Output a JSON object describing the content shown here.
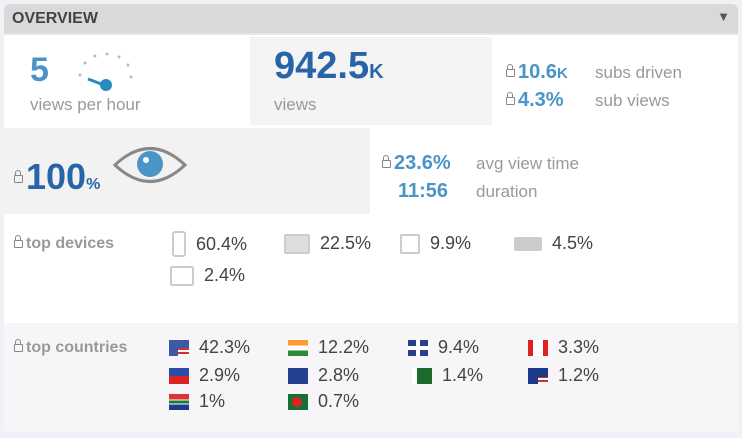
{
  "header": {
    "title": "OVERVIEW",
    "collapse_icon": "triangle-down-icon"
  },
  "views_per_hour": {
    "value": "5",
    "label": "views per hour",
    "icon": "speedometer-icon"
  },
  "views": {
    "value": "942.5",
    "unit": "K",
    "label": "views"
  },
  "subs": {
    "driven_value": "10.6",
    "driven_unit": "K",
    "driven_label": "subs driven",
    "sub_views_value": "4.3%",
    "sub_views_label": "sub views"
  },
  "viewed": {
    "value": "100",
    "unit": "%",
    "icon": "eye-icon"
  },
  "view_time": {
    "avg_value": "23.6%",
    "avg_label": "avg view time",
    "duration_value": "11:56",
    "duration_label": "duration"
  },
  "devices": {
    "label": "top devices",
    "items": [
      {
        "icon": "mobile-icon",
        "value": "60.4%"
      },
      {
        "icon": "desktop-icon",
        "value": "22.5%"
      },
      {
        "icon": "tablet-icon",
        "value": "9.9%"
      },
      {
        "icon": "game-console-icon",
        "value": "4.5%"
      },
      {
        "icon": "tv-icon",
        "value": "2.4%"
      }
    ]
  },
  "countries": {
    "label": "top countries",
    "items": [
      {
        "flag": "us",
        "value": "42.3%"
      },
      {
        "flag": "in",
        "value": "12.2%"
      },
      {
        "flag": "gb",
        "value": "9.4%"
      },
      {
        "flag": "ca",
        "value": "3.3%"
      },
      {
        "flag": "ph",
        "value": "2.9%"
      },
      {
        "flag": "au",
        "value": "2.8%"
      },
      {
        "flag": "pk",
        "value": "1.4%"
      },
      {
        "flag": "my",
        "value": "1.2%"
      },
      {
        "flag": "za",
        "value": "1%"
      },
      {
        "flag": "bd",
        "value": "0.7%"
      }
    ]
  },
  "colors": {
    "primary": "#2a64a8",
    "accent": "#4a94c8",
    "header": "#d9d9d9"
  }
}
